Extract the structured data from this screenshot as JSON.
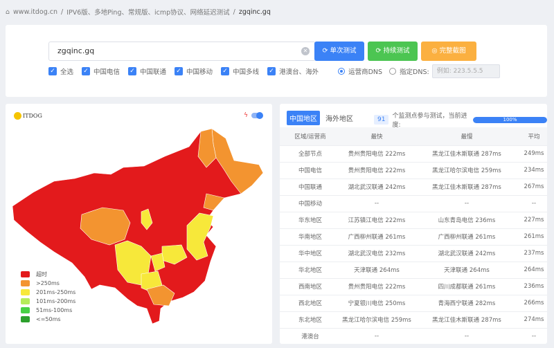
{
  "breadcrumb": {
    "home": "www.itdog.cn",
    "section": "IPV6版、多地Ping、常规版、icmp协议、网络延迟测试",
    "current": "zgqinc.gq"
  },
  "search": {
    "value": "zgqinc.gq",
    "single_test": "单次测试",
    "continuous_test": "持续测试",
    "screenshot": "完整截图"
  },
  "filters": [
    "全选",
    "中国电信",
    "中国联通",
    "中国移动",
    "中国多线",
    "港澳台、海外"
  ],
  "dns": {
    "operator": "运营商DNS",
    "custom": "指定DNS:",
    "placeholder": "例如: 223.5.5.5"
  },
  "colors": {
    "primary": "#3b82f6",
    "green": "#4cc552",
    "orange": "#fbb040"
  },
  "map": {
    "logo": "ITDOG",
    "legend": [
      {
        "label": "超时",
        "color": "#e31a1c"
      },
      {
        "label": ">250ms",
        "color": "#f39430"
      },
      {
        "label": "201ms-250ms",
        "color": "#f7e83a"
      },
      {
        "label": "101ms-200ms",
        "color": "#b5ec5a"
      },
      {
        "label": "51ms-100ms",
        "color": "#47d144"
      },
      {
        "label": "<=50ms",
        "color": "#2ca02c"
      }
    ]
  },
  "results": {
    "tabs": [
      "中国地区",
      "海外地区"
    ],
    "count": "91",
    "count_text": "个监测点参与测试，当前进度:",
    "progress": "100%",
    "columns": [
      "区域/运营商",
      "最快",
      "最慢",
      "平均"
    ],
    "rows": [
      [
        "全部节点",
        "贵州贵阳电信 222ms",
        "黑龙江佳木斯联通 287ms",
        "249ms"
      ],
      [
        "中国电信",
        "贵州贵阳电信 222ms",
        "黑龙江哈尔滨电信 259ms",
        "234ms"
      ],
      [
        "中国联通",
        "湖北武汉联通 242ms",
        "黑龙江佳木斯联通 287ms",
        "267ms"
      ],
      [
        "中国移动",
        "--",
        "--",
        "--"
      ],
      [
        "华东地区",
        "江苏镇江电信 222ms",
        "山东青岛电信 236ms",
        "227ms"
      ],
      [
        "华南地区",
        "广西柳州联通 261ms",
        "广西柳州联通 261ms",
        "261ms"
      ],
      [
        "华中地区",
        "湖北武汉电信 232ms",
        "湖北武汉联通 242ms",
        "237ms"
      ],
      [
        "华北地区",
        "天津联通 264ms",
        "天津联通 264ms",
        "264ms"
      ],
      [
        "西南地区",
        "贵州贵阳电信 222ms",
        "四川成都联通 261ms",
        "236ms"
      ],
      [
        "西北地区",
        "宁夏银川电信 250ms",
        "青海西宁联通 282ms",
        "266ms"
      ],
      [
        "东北地区",
        "黑龙江哈尔滨电信 259ms",
        "黑龙江佳木斯联通 287ms",
        "274ms"
      ],
      [
        "港澳台",
        "--",
        "--",
        "--"
      ]
    ]
  }
}
